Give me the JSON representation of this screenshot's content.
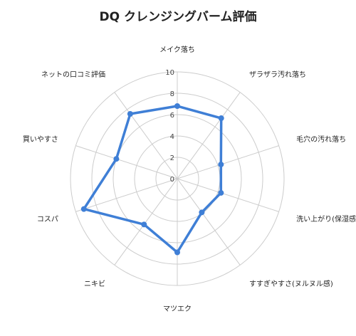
{
  "chart_data": {
    "type": "radar",
    "title": "DQ クレンジングバーム評価",
    "categories": [
      "メイク落ち",
      "ザラザラ汚れ落ち",
      "毛穴の汚れ落ち",
      "洗い上がり(保湿感)",
      "すすぎやすさ(ヌルヌル感)",
      "マツエク",
      "ニキビ",
      "コスパ",
      "買いやすさ",
      "ネットの口コミ評価"
    ],
    "series": [
      {
        "values": [
          6.8,
          7.0,
          4.3,
          4.3,
          3.9,
          6.9,
          5.3,
          9.2,
          6.0,
          7.5
        ],
        "color": "#3f7fd6"
      }
    ],
    "rlim": [
      0,
      10
    ],
    "ticks": [
      "0",
      "2",
      "4",
      "6",
      "8",
      "10"
    ],
    "grid": true,
    "legend": "none",
    "gridline_color": "#cccccc"
  }
}
